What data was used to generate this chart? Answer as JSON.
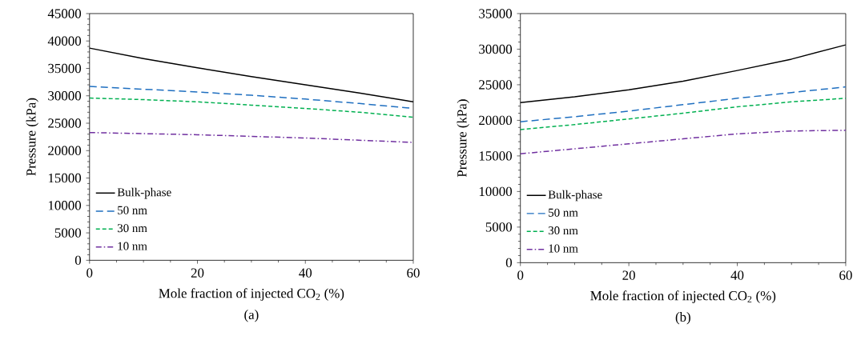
{
  "chart_data": [
    {
      "type": "line",
      "title": "(a)",
      "xlabel": "Mole fraction of injected CO$_{2}$ (%)",
      "ylabel": "Pressure (kPa)",
      "x": [
        0,
        10,
        20,
        30,
        40,
        50,
        60
      ],
      "xlim": [
        0,
        60
      ],
      "xticks": [
        0,
        20,
        40,
        60
      ],
      "ylim": [
        0,
        45000
      ],
      "yticks": [
        0,
        5000,
        10000,
        15000,
        20000,
        25000,
        30000,
        35000,
        40000,
        45000
      ],
      "grid": false,
      "legend": "bottom left",
      "marker": "none",
      "series": [
        {
          "name": "Bulk-phase",
          "color": "#000000",
          "line_style": "solid",
          "values": [
            38700,
            36800,
            35100,
            33500,
            32000,
            30500,
            28900
          ]
        },
        {
          "name": "50 nm",
          "color": "#1f6fc0",
          "line_style": "long dashed",
          "values": [
            31700,
            31200,
            30700,
            30100,
            29400,
            28600,
            27700
          ]
        },
        {
          "name": "30 nm",
          "color": "#00b050",
          "line_style": "dashed",
          "values": [
            29600,
            29300,
            28900,
            28300,
            27700,
            27000,
            26100
          ]
        },
        {
          "name": "10 nm",
          "color": "#7030a0",
          "line_style": "dashdot",
          "values": [
            23300,
            23100,
            22900,
            22600,
            22300,
            21900,
            21500
          ]
        }
      ]
    },
    {
      "type": "line",
      "title": "(b)",
      "xlabel": "Mole fraction of injected CO$_{2}$ (%)",
      "ylabel": "Pressure (kPa)",
      "x": [
        0,
        10,
        20,
        30,
        40,
        50,
        60
      ],
      "xlim": [
        0,
        60
      ],
      "xticks": [
        0,
        20,
        40,
        60
      ],
      "ylim": [
        0,
        35000
      ],
      "yticks": [
        0,
        5000,
        10000,
        15000,
        20000,
        25000,
        30000,
        35000
      ],
      "grid": false,
      "legend": "bottom left",
      "marker": "none",
      "series": [
        {
          "name": "Bulk-phase",
          "color": "#000000",
          "line_style": "solid",
          "values": [
            22500,
            23300,
            24300,
            25500,
            27000,
            28600,
            30600
          ]
        },
        {
          "name": "50 nm",
          "color": "#1f6fc0",
          "line_style": "long dashed",
          "values": [
            19800,
            20500,
            21300,
            22200,
            23100,
            23900,
            24700
          ]
        },
        {
          "name": "30 nm",
          "color": "#00b050",
          "line_style": "dashed",
          "values": [
            18700,
            19400,
            20200,
            21000,
            21900,
            22600,
            23100
          ]
        },
        {
          "name": "10 nm",
          "color": "#7030a0",
          "line_style": "dashdot",
          "values": [
            15300,
            16000,
            16700,
            17400,
            18100,
            18500,
            18600
          ]
        }
      ]
    }
  ]
}
